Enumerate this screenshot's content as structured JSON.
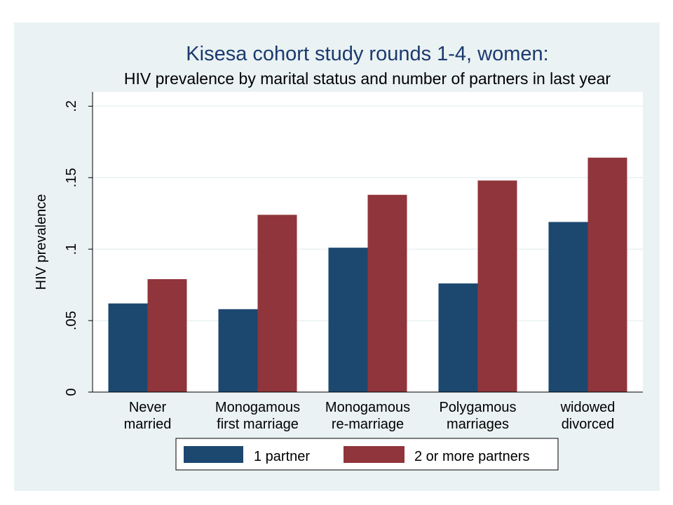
{
  "chart_data": {
    "type": "bar",
    "title": "Kisesa cohort study rounds 1-4, women:",
    "subtitle": "HIV prevalence by marital status and number of partners in last year",
    "xlabel": "",
    "ylabel": "HIV prevalence",
    "ylim": [
      0,
      0.21
    ],
    "yticks": [
      0,
      0.05,
      0.1,
      0.15,
      0.2
    ],
    "ytick_labels": [
      "0",
      ".05",
      ".1",
      ".15",
      ".2"
    ],
    "categories": [
      [
        "Never",
        "married"
      ],
      [
        "Monogamous",
        "first marriage"
      ],
      [
        "Monogamous",
        "re-marriage"
      ],
      [
        "Polygamous",
        "marriages"
      ],
      [
        "widowed",
        "divorced"
      ]
    ],
    "series": [
      {
        "name": "1 partner",
        "color": "#1c4870",
        "values": [
          0.062,
          0.058,
          0.101,
          0.076,
          0.119
        ]
      },
      {
        "name": "2 or more partners",
        "color": "#90353b",
        "values": [
          0.079,
          0.124,
          0.138,
          0.148,
          0.164
        ]
      }
    ],
    "grid": true,
    "legend_position": "bottom",
    "colors": {
      "outer_background": "#eaf2f3",
      "plot_background": "#ffffff",
      "grid": "#eaf2f3"
    }
  }
}
